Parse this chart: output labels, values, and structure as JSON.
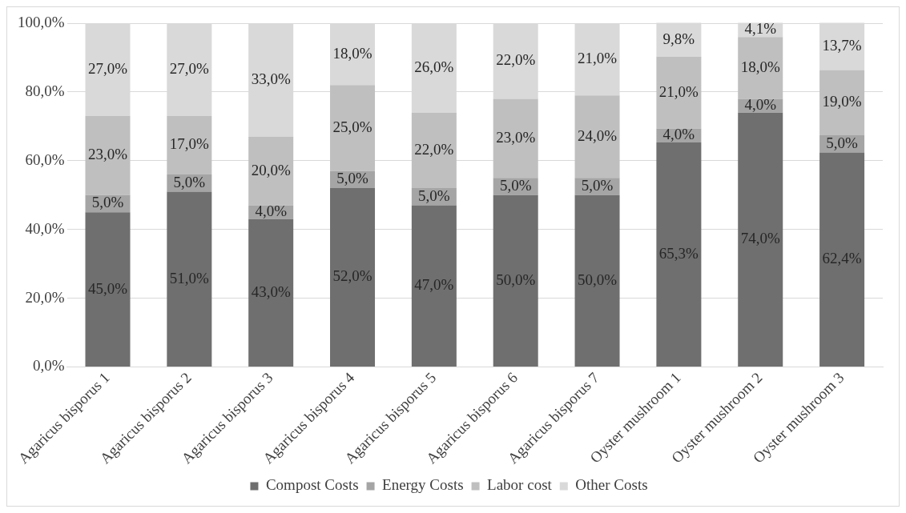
{
  "chart_data": {
    "type": "bar",
    "stacked": true,
    "categories": [
      "Agaricus bisporus 1",
      "Agaricus bisporus 2",
      "Agaricus bisporus 3",
      "Agaricus bisporus 4",
      "Agaricus bisporus 5",
      "Agaricus bisporus 6",
      "Agaricus bisporus 7",
      "Oyster mushroom 1",
      "Oyster mushroom 2",
      "Oyster mushroom 3"
    ],
    "series": [
      {
        "name": "Compost Costs",
        "color": "#6f6f6f",
        "values": [
          45,
          51,
          43,
          52,
          47,
          50,
          50,
          65.3,
          74,
          62.4
        ],
        "value_labels": [
          "45,0%",
          "51,0%",
          "43,0%",
          "52,0%",
          "47,0%",
          "50,0%",
          "50,0%",
          "65,3%",
          "74,0%",
          "62,4%"
        ]
      },
      {
        "name": "Energy Costs",
        "color": "#a5a5a5",
        "values": [
          5,
          5,
          4,
          5,
          5,
          5,
          5,
          4,
          4,
          5
        ],
        "value_labels": [
          "5,0%",
          "5,0%",
          "4,0%",
          "5,0%",
          "5,0%",
          "5,0%",
          "5,0%",
          "4,0%",
          "4,0%",
          "5,0%"
        ]
      },
      {
        "name": "Labor cost",
        "color": "#bfbfbf",
        "values": [
          23,
          17,
          20,
          25,
          22,
          23,
          24,
          21,
          18,
          19
        ],
        "value_labels": [
          "23,0%",
          "17,0%",
          "20,0%",
          "25,0%",
          "22,0%",
          "23,0%",
          "24,0%",
          "21,0%",
          "18,0%",
          "19,0%"
        ]
      },
      {
        "name": "Other Costs",
        "color": "#d9d9d9",
        "values": [
          27,
          27,
          33,
          18,
          26,
          22,
          21,
          9.8,
          4.1,
          13.7
        ],
        "value_labels": [
          "27,0%",
          "27,0%",
          "33,0%",
          "18,0%",
          "26,0%",
          "22,0%",
          "21,0%",
          "9,8%",
          "4,1%",
          "13,7%"
        ]
      }
    ],
    "ylim": [
      0,
      100
    ],
    "yticks": [
      {
        "value": 0,
        "label": "0,0%"
      },
      {
        "value": 20,
        "label": "20,0%"
      },
      {
        "value": 40,
        "label": "40,0%"
      },
      {
        "value": 60,
        "label": "60,0%"
      },
      {
        "value": 80,
        "label": "80,0%"
      },
      {
        "value": 100,
        "label": "100,0%"
      }
    ],
    "grid": "y",
    "legend": "bottom"
  }
}
